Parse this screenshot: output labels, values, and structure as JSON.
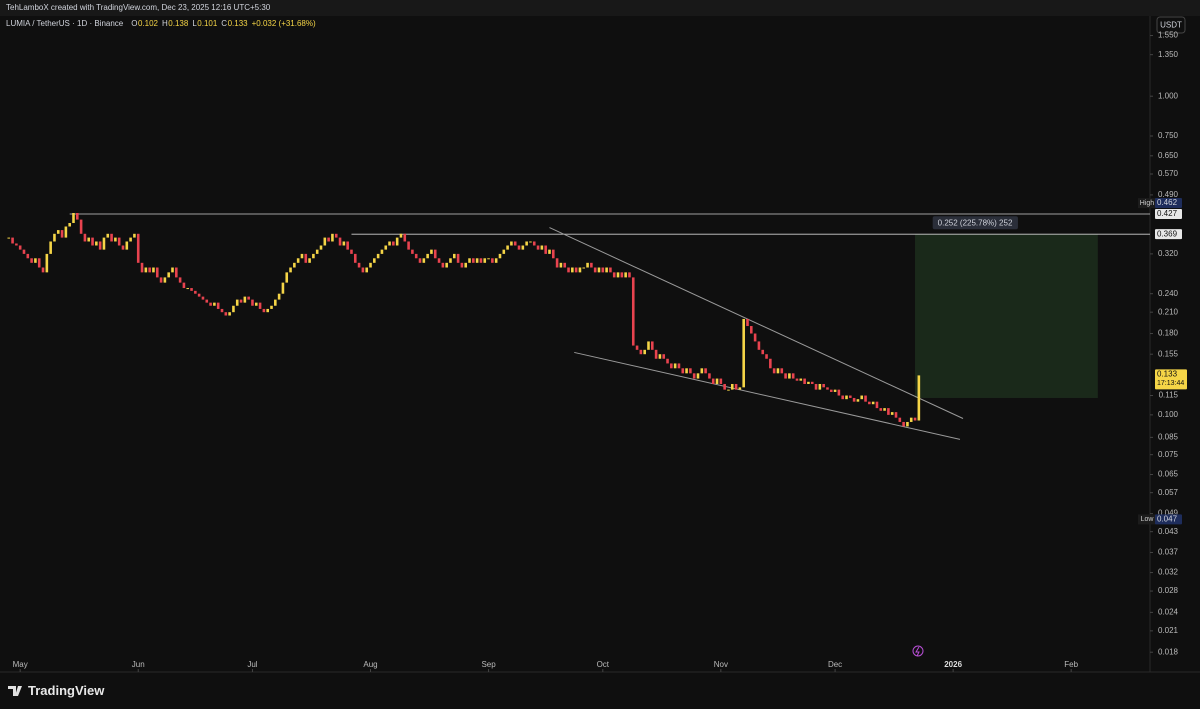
{
  "header": {
    "credit": "TehLamboX created with TradingView.com, Dec 23, 2025 12:16 UTC+5:30",
    "currency": "USDT"
  },
  "footer": {
    "brand": "TradingView"
  },
  "chart_data": {
    "type": "candlestick",
    "title": "LUMIA / TetherUS · 1D · Binance",
    "ohlc": [
      {
        "key": "O",
        "value": 0.102
      },
      {
        "key": "H",
        "value": 0.138
      },
      {
        "key": "L",
        "value": 0.101
      },
      {
        "key": "C",
        "value": 0.133
      }
    ],
    "change": "+0.032 (+31.68%)",
    "up_color": "#f5d547",
    "down_color": "#e8434f",
    "log_scale": true,
    "series": [
      {
        "name": "LUMIA / TetherUS",
        "values": [
          0.36,
          0.345,
          0.34,
          0.33,
          0.32,
          0.31,
          0.3,
          0.31,
          0.29,
          0.28,
          0.32,
          0.35,
          0.37,
          0.38,
          0.36,
          0.39,
          0.4,
          0.43,
          0.41,
          0.37,
          0.35,
          0.36,
          0.34,
          0.35,
          0.33,
          0.36,
          0.37,
          0.35,
          0.36,
          0.34,
          0.33,
          0.35,
          0.36,
          0.37,
          0.3,
          0.28,
          0.29,
          0.28,
          0.29,
          0.27,
          0.26,
          0.27,
          0.28,
          0.29,
          0.27,
          0.26,
          0.25,
          0.25,
          0.245,
          0.24,
          0.235,
          0.23,
          0.225,
          0.22,
          0.225,
          0.215,
          0.21,
          0.205,
          0.21,
          0.22,
          0.23,
          0.225,
          0.235,
          0.23,
          0.22,
          0.225,
          0.215,
          0.21,
          0.215,
          0.22,
          0.23,
          0.24,
          0.26,
          0.28,
          0.29,
          0.3,
          0.31,
          0.32,
          0.3,
          0.31,
          0.32,
          0.33,
          0.34,
          0.36,
          0.35,
          0.37,
          0.36,
          0.34,
          0.35,
          0.33,
          0.32,
          0.3,
          0.29,
          0.28,
          0.29,
          0.3,
          0.31,
          0.32,
          0.33,
          0.34,
          0.35,
          0.34,
          0.36,
          0.37,
          0.35,
          0.33,
          0.32,
          0.31,
          0.3,
          0.31,
          0.32,
          0.33,
          0.31,
          0.3,
          0.29,
          0.3,
          0.31,
          0.32,
          0.3,
          0.29,
          0.3,
          0.31,
          0.3,
          0.31,
          0.3,
          0.31,
          0.31,
          0.3,
          0.31,
          0.32,
          0.33,
          0.34,
          0.35,
          0.34,
          0.33,
          0.34,
          0.35,
          0.35,
          0.34,
          0.33,
          0.34,
          0.32,
          0.33,
          0.31,
          0.29,
          0.3,
          0.29,
          0.28,
          0.29,
          0.28,
          0.29,
          0.29,
          0.3,
          0.29,
          0.28,
          0.29,
          0.28,
          0.29,
          0.28,
          0.27,
          0.28,
          0.27,
          0.28,
          0.27,
          0.165,
          0.16,
          0.155,
          0.16,
          0.17,
          0.16,
          0.15,
          0.155,
          0.15,
          0.145,
          0.14,
          0.145,
          0.14,
          0.135,
          0.14,
          0.135,
          0.13,
          0.135,
          0.14,
          0.135,
          0.13,
          0.125,
          0.13,
          0.125,
          0.12,
          0.12,
          0.125,
          0.12,
          0.122,
          0.2,
          0.19,
          0.18,
          0.17,
          0.16,
          0.155,
          0.15,
          0.14,
          0.135,
          0.14,
          0.135,
          0.13,
          0.135,
          0.13,
          0.128,
          0.13,
          0.125,
          0.127,
          0.125,
          0.12,
          0.125,
          0.122,
          0.12,
          0.118,
          0.12,
          0.115,
          0.112,
          0.115,
          0.113,
          0.11,
          0.112,
          0.115,
          0.11,
          0.108,
          0.11,
          0.105,
          0.103,
          0.105,
          0.1,
          0.102,
          0.098,
          0.095,
          0.092,
          0.095,
          0.098,
          0.096,
          0.133
        ]
      }
    ],
    "xlim": [
      -2.3,
      299.7
    ],
    "xticks": [
      {
        "value": 3,
        "label": "May"
      },
      {
        "value": 34,
        "label": "Jun"
      },
      {
        "value": 64,
        "label": "Jul"
      },
      {
        "value": 95,
        "label": "Aug"
      },
      {
        "value": 126,
        "label": "Sep"
      },
      {
        "value": 156,
        "label": "Oct"
      },
      {
        "value": 187,
        "label": "Nov"
      },
      {
        "value": 217,
        "label": "Dec"
      },
      {
        "value": 248,
        "label": "2026"
      },
      {
        "value": 279,
        "label": "Feb"
      }
    ],
    "ylim": [
      0.0156,
      1.785
    ],
    "yticks": [
      {
        "value": 1.55,
        "label": "1.550"
      },
      {
        "value": 1.35,
        "label": "1.350"
      },
      {
        "value": 1,
        "label": "1.000"
      },
      {
        "value": 0.75,
        "label": "0.750"
      },
      {
        "value": 0.65,
        "label": "0.650"
      },
      {
        "value": 0.57,
        "label": "0.570"
      },
      {
        "value": 0.49,
        "label": "0.490"
      },
      {
        "value": 0.32,
        "label": "0.320"
      },
      {
        "value": 0.24,
        "label": "0.240"
      },
      {
        "value": 0.21,
        "label": "0.210"
      },
      {
        "value": 0.18,
        "label": "0.180"
      },
      {
        "value": 0.155,
        "label": "0.155"
      },
      {
        "value": 0.115,
        "label": "0.115"
      },
      {
        "value": 0.1,
        "label": "0.100"
      },
      {
        "value": 0.085,
        "label": "0.085"
      },
      {
        "value": 0.075,
        "label": "0.075"
      },
      {
        "value": 0.065,
        "label": "0.065"
      },
      {
        "value": 0.057,
        "label": "0.057"
      },
      {
        "value": 0.049,
        "label": "0.049"
      },
      {
        "value": 0.043,
        "label": "0.043"
      },
      {
        "value": 0.037,
        "label": "0.037"
      },
      {
        "value": 0.032,
        "label": "0.032"
      },
      {
        "value": 0.028,
        "label": "0.028"
      },
      {
        "value": 0.024,
        "label": "0.024"
      },
      {
        "value": 0.021,
        "label": "0.021"
      },
      {
        "value": 0.018,
        "label": "0.018"
      }
    ],
    "levels": [
      {
        "value": 0.427,
        "from": 16
      },
      {
        "value": 0.369,
        "from": 90
      }
    ],
    "trendlines": [
      [
        [
          142,
          0.387
        ],
        [
          250.6,
          0.0974
        ]
      ],
      [
        [
          148.5,
          0.157
        ],
        [
          249.8,
          0.0838
        ]
      ]
    ],
    "position": {
      "label": "0.252 (225.78%) 252",
      "top": 0.369,
      "bottom": 0.113,
      "start": 238,
      "end": 286
    },
    "high": {
      "label": "High",
      "value": 0.462
    },
    "low": {
      "label": "Low",
      "value": 0.047
    },
    "last": {
      "value": 0.133,
      "countdown": "17:13:44"
    }
  }
}
